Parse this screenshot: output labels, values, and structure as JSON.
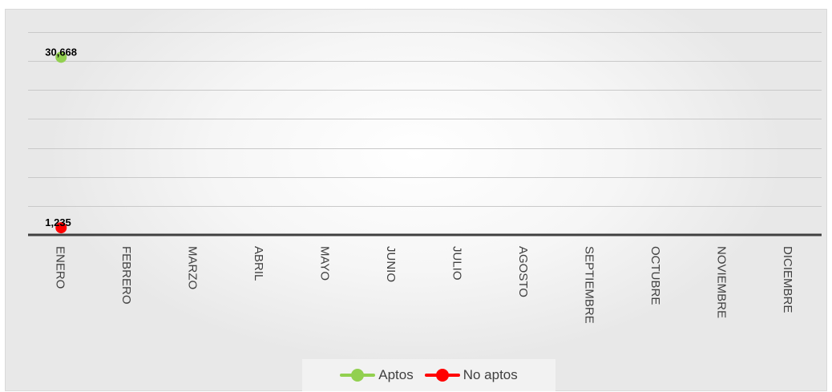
{
  "chart_data": {
    "type": "line",
    "title": "",
    "xlabel": "",
    "ylabel": "",
    "categories": [
      "ENERO",
      "FEBRERO",
      "MARZO",
      "ABRIL",
      "MAYO",
      "JUNIO",
      "JULIO",
      "AGOSTO",
      "SEPTIEMBRE",
      "OCTUBRE",
      "NOVIEMBRE",
      "DICIEMBRE"
    ],
    "ylim": [
      0,
      35000
    ],
    "y_gridline_step": 5000,
    "grid": true,
    "legend_position": "bottom",
    "series": [
      {
        "name": "Aptos",
        "color": "#92d050",
        "values": [
          30668,
          null,
          null,
          null,
          null,
          null,
          null,
          null,
          null,
          null,
          null,
          null
        ],
        "data_labels": [
          "30,668"
        ]
      },
      {
        "name": "No aptos",
        "color": "#ff0000",
        "values": [
          1235,
          null,
          null,
          null,
          null,
          null,
          null,
          null,
          null,
          null,
          null,
          null
        ],
        "data_labels": [
          "1,235"
        ]
      }
    ]
  }
}
